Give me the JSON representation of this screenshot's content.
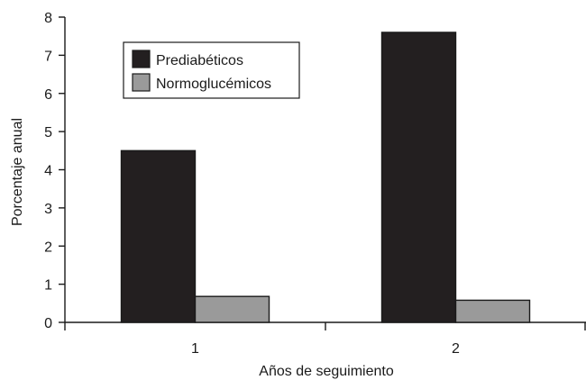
{
  "chart_data": {
    "type": "bar",
    "title": "",
    "xlabel": "Años de seguimiento",
    "ylabel": "Porcentaje anual",
    "categories": [
      "1",
      "2"
    ],
    "ylim": [
      0,
      8
    ],
    "yticks": [
      "0",
      "1",
      "2",
      "3",
      "4",
      "5",
      "6",
      "7",
      "8"
    ],
    "series": [
      {
        "name": "Prediabéticos",
        "values": [
          4.5,
          7.6
        ],
        "color": "#231f20"
      },
      {
        "name": "Normoglucémicos",
        "values": [
          0.68,
          0.58
        ],
        "color": "#9a9a9a"
      }
    ],
    "grid": false,
    "legend_position": "top-left"
  }
}
